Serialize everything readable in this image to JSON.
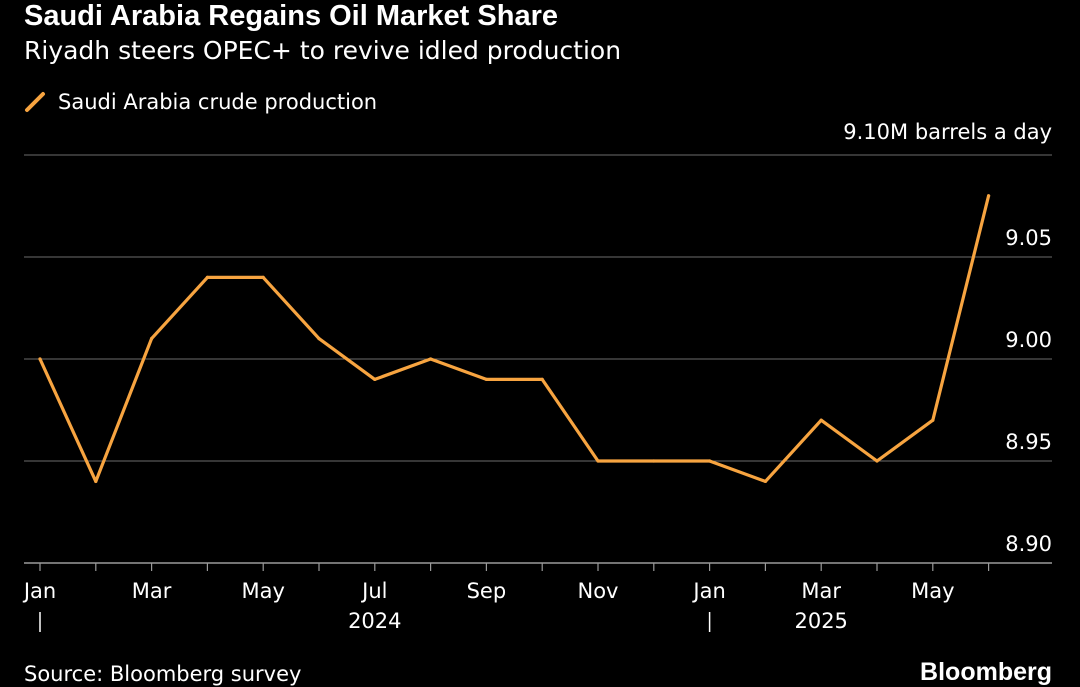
{
  "title": "Saudi Arabia Regains Oil Market Share",
  "subtitle": "Riyadh steers OPEC+ to revive idled production",
  "unit_label": "9.10M barrels a day",
  "source": "Source: Bloomberg survey",
  "brand": "Bloomberg",
  "colors": {
    "background": "#000000",
    "line": "#F7A440",
    "grid": "#6b6b6b",
    "text": "#ffffff"
  },
  "chart_data": {
    "type": "line",
    "x": [
      "2024-01",
      "2024-02",
      "2024-03",
      "2024-04",
      "2024-05",
      "2024-06",
      "2024-07",
      "2024-08",
      "2024-09",
      "2024-10",
      "2024-11",
      "2024-12",
      "2025-01",
      "2025-02",
      "2025-03",
      "2025-04",
      "2025-05",
      "2025-06"
    ],
    "series": [
      {
        "name": "Saudi Arabia crude production",
        "values": [
          9.0,
          8.94,
          9.01,
          9.04,
          9.04,
          9.01,
          8.99,
          9.0,
          8.99,
          8.99,
          8.95,
          8.95,
          8.95,
          8.94,
          8.97,
          8.95,
          8.97,
          9.08
        ]
      }
    ],
    "ylim": [
      8.9,
      9.1
    ],
    "y_ticks": [
      "9.10M barrels a day",
      "9.05",
      "9.00",
      "8.95",
      "8.90"
    ],
    "x_tick_labels": [
      {
        "x": "2024-01",
        "label": "Jan"
      },
      {
        "x": "2024-03",
        "label": "Mar"
      },
      {
        "x": "2024-05",
        "label": "May"
      },
      {
        "x": "2024-07",
        "label": "Jul"
      },
      {
        "x": "2024-09",
        "label": "Sep"
      },
      {
        "x": "2024-11",
        "label": "Nov"
      },
      {
        "x": "2025-01",
        "label": "Jan"
      },
      {
        "x": "2025-03",
        "label": "Mar"
      },
      {
        "x": "2025-05",
        "label": "May"
      }
    ],
    "x_year_labels": [
      {
        "x": "2024-07",
        "label": "2024"
      },
      {
        "x": "2025-03",
        "label": "2025"
      }
    ],
    "x_year_dividers": [
      "2024-01",
      "2025-01"
    ],
    "grid": true,
    "legend_position": "top-left"
  }
}
